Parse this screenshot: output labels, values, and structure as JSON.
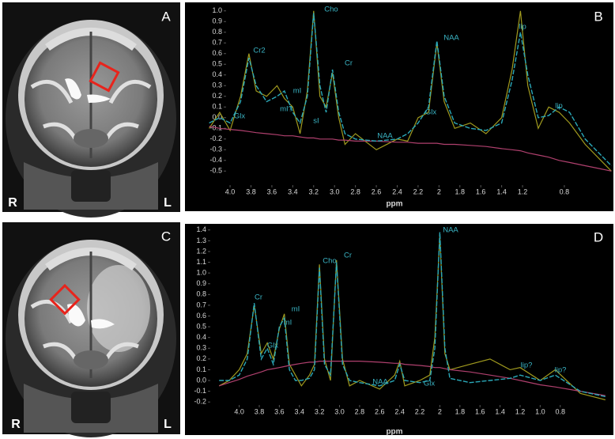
{
  "images": [
    {
      "panel_label": "A",
      "left_label": "R",
      "right_label": "L"
    },
    {
      "panel_label": "C",
      "left_label": "R",
      "right_label": "L"
    }
  ],
  "chart_data": [
    {
      "type": "line",
      "panel_label": "B",
      "xlabel": "ppm",
      "annotations": [
        "Glx",
        "Cr2",
        "mI?",
        "mI",
        "sI",
        "Cho",
        "Cr",
        "NAA",
        "Glx",
        "NAA",
        "lip",
        "lip"
      ],
      "xlim": [
        4.22,
        0.33
      ],
      "ylim": [
        -0.55,
        1.05
      ],
      "xticks": [
        {
          "value": 4.0,
          "label": "4.0"
        },
        3.8,
        3.6,
        3.4,
        3.2,
        {
          "value": 3.0,
          "label": "3.0"
        },
        2.8,
        2.6,
        2.4,
        2.2,
        2,
        1.8,
        1.6,
        1.4,
        1.2,
        0.8
      ],
      "yticks": [
        {
          "value": 1.0,
          "label": "1.0"
        },
        0.9,
        0.8,
        0.7,
        0.6,
        0.5,
        0.4,
        0.3,
        0.2,
        0.1,
        {
          "value": 0.0,
          "label": "0.0"
        },
        -0.1,
        -0.2,
        -0.3,
        -0.4,
        -0.5
      ],
      "x": [
        4.2,
        4.1,
        4.0,
        3.9,
        3.82,
        3.75,
        3.65,
        3.55,
        3.48,
        3.4,
        3.33,
        3.26,
        3.2,
        3.14,
        3.08,
        3.02,
        2.96,
        2.9,
        2.8,
        2.6,
        2.4,
        2.3,
        2.2,
        2.1,
        2.02,
        1.95,
        1.85,
        1.7,
        1.55,
        1.4,
        1.3,
        1.22,
        1.15,
        1.05,
        0.95,
        0.85,
        0.75,
        0.6,
        0.45,
        0.35
      ],
      "series": [
        {
          "color": "#a09a1e",
          "values": [
            -0.1,
            0.05,
            -0.12,
            0.2,
            0.6,
            0.25,
            0.2,
            0.3,
            0.18,
            0.1,
            -0.15,
            0.25,
            1.0,
            0.2,
            0.1,
            0.42,
            0.0,
            -0.25,
            -0.15,
            -0.3,
            -0.2,
            -0.22,
            0.0,
            0.05,
            0.7,
            0.15,
            -0.1,
            -0.05,
            -0.15,
            0.0,
            0.45,
            1.0,
            0.3,
            -0.1,
            0.1,
            0.05,
            -0.05,
            -0.25,
            -0.4,
            -0.5
          ]
        },
        {
          "color": "#b0406e",
          "values": [
            -0.08,
            -0.1,
            -0.11,
            -0.12,
            -0.13,
            -0.14,
            -0.15,
            -0.16,
            -0.17,
            -0.17,
            -0.18,
            -0.19,
            -0.19,
            -0.2,
            -0.2,
            -0.2,
            -0.21,
            -0.21,
            -0.22,
            -0.22,
            -0.23,
            -0.23,
            -0.24,
            -0.24,
            -0.24,
            -0.25,
            -0.25,
            -0.26,
            -0.27,
            -0.29,
            -0.3,
            -0.31,
            -0.33,
            -0.35,
            -0.37,
            -0.4,
            -0.42,
            -0.45,
            -0.48,
            -0.5
          ]
        },
        {
          "color": "#2aa8b8",
          "values": [
            -0.05,
            0.0,
            -0.05,
            0.15,
            0.56,
            0.3,
            0.15,
            0.2,
            0.25,
            0.05,
            -0.05,
            0.2,
            0.98,
            0.3,
            0.05,
            0.45,
            0.05,
            -0.15,
            -0.2,
            -0.22,
            -0.2,
            -0.15,
            -0.05,
            0.1,
            0.72,
            0.2,
            -0.05,
            -0.1,
            -0.12,
            -0.05,
            0.35,
            0.8,
            0.4,
            0.0,
            0.02,
            0.1,
            0.05,
            -0.2,
            -0.35,
            -0.45
          ]
        }
      ]
    },
    {
      "type": "line",
      "panel_label": "D",
      "xlabel": "ppm",
      "annotations": [
        "Cr",
        "Glx",
        "mI",
        "mI",
        "Cho",
        "Cr",
        "NAA",
        "Glx",
        "NAA",
        "lip?",
        "lip?"
      ],
      "xlim": [
        4.32,
        0.27
      ],
      "ylim": [
        -0.25,
        1.45
      ],
      "xticks": [
        {
          "value": 4.0,
          "label": "4.0"
        },
        3.8,
        3.6,
        3.4,
        3.2,
        {
          "value": 3.0,
          "label": "3.0"
        },
        2.8,
        2.6,
        2.4,
        2.2,
        2,
        1.8,
        1.6,
        1.4,
        1.2,
        {
          "value": 1.0,
          "label": "1.0"
        },
        0.8
      ],
      "yticks": [
        1.4,
        1.3,
        1.2,
        1.1,
        {
          "value": 1.0,
          "label": "1.0"
        },
        0.9,
        0.8,
        0.7,
        0.6,
        0.5,
        0.4,
        0.3,
        0.2,
        0.1,
        {
          "value": 0.0,
          "label": "0.0"
        },
        -0.1,
        -0.2
      ],
      "x": [
        4.2,
        4.1,
        4.0,
        3.92,
        3.85,
        3.78,
        3.72,
        3.66,
        3.6,
        3.55,
        3.5,
        3.44,
        3.38,
        3.3,
        3.25,
        3.2,
        3.15,
        3.09,
        3.03,
        2.97,
        2.9,
        2.8,
        2.6,
        2.45,
        2.4,
        2.35,
        2.2,
        2.1,
        2.05,
        2.0,
        1.95,
        1.9,
        1.7,
        1.5,
        1.3,
        1.2,
        1.0,
        0.85,
        0.6,
        0.35
      ],
      "series": [
        {
          "color": "#a09a1e",
          "values": [
            -0.05,
            0.0,
            0.1,
            0.25,
            0.7,
            0.25,
            0.35,
            0.2,
            0.48,
            0.62,
            0.15,
            0.05,
            -0.05,
            0.05,
            0.15,
            1.08,
            0.2,
            0.0,
            1.12,
            0.2,
            -0.05,
            0.0,
            -0.08,
            0.05,
            0.18,
            -0.05,
            0.0,
            0.05,
            0.4,
            1.35,
            0.25,
            0.1,
            0.15,
            0.2,
            0.1,
            0.12,
            0.0,
            0.1,
            -0.12,
            -0.18
          ]
        },
        {
          "color": "#b0406e",
          "values": [
            -0.05,
            -0.02,
            0.01,
            0.04,
            0.06,
            0.08,
            0.1,
            0.11,
            0.12,
            0.13,
            0.14,
            0.15,
            0.16,
            0.17,
            0.17,
            0.18,
            0.18,
            0.18,
            0.18,
            0.18,
            0.18,
            0.18,
            0.17,
            0.16,
            0.16,
            0.15,
            0.14,
            0.13,
            0.12,
            0.12,
            0.11,
            0.1,
            0.08,
            0.05,
            0.02,
            0.0,
            -0.04,
            -0.06,
            -0.1,
            -0.14
          ]
        },
        {
          "color": "#2aa8b8",
          "values": [
            0.0,
            0.0,
            0.05,
            0.2,
            0.72,
            0.2,
            0.3,
            0.15,
            0.5,
            0.58,
            0.1,
            0.0,
            0.0,
            0.02,
            0.1,
            1.05,
            0.15,
            0.05,
            1.1,
            0.15,
            0.0,
            -0.02,
            -0.05,
            0.0,
            0.15,
            0.0,
            -0.02,
            0.0,
            0.3,
            1.38,
            0.3,
            0.02,
            -0.02,
            0.0,
            0.02,
            0.05,
            0.0,
            0.05,
            -0.1,
            -0.15
          ]
        }
      ]
    }
  ]
}
